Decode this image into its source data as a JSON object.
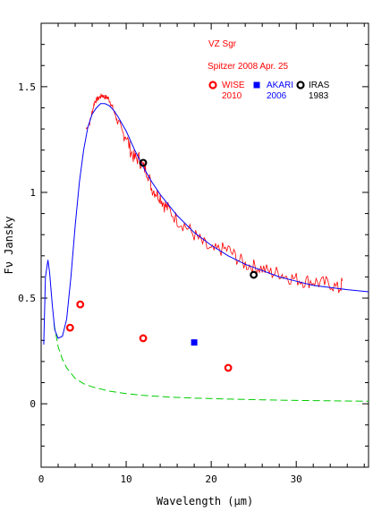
{
  "chart_data": {
    "type": "scatter",
    "title": "VZ Sgr",
    "subtitle": "Spitzer 2008 Apr. 25",
    "xlabel": "Wavelength (μm)",
    "ylabel": "Fν   Jansky",
    "xlim": [
      0,
      38.5
    ],
    "ylim": [
      -0.3,
      1.8
    ],
    "x_ticks": [
      0,
      10,
      20,
      30
    ],
    "y_ticks": [
      0,
      0.5,
      1,
      1.5
    ],
    "x_tick_labels": [
      "0",
      "10",
      "20",
      "30"
    ],
    "y_tick_labels": [
      "0",
      "0.5",
      "1",
      "1.5"
    ],
    "grid": false,
    "legend": [
      {
        "name": "WISE",
        "year": "2010",
        "marker": "open-circle",
        "color": "#ff0000",
        "year_color": "#ff0000"
      },
      {
        "name": "AKARI",
        "year": "2006",
        "marker": "filled-square",
        "color": "#0000ff",
        "year_color": "#0000ff"
      },
      {
        "name": "IRAS",
        "year": "1983",
        "marker": "open-circle",
        "color": "#000000",
        "year_color": "#000000"
      }
    ],
    "series": [
      {
        "name": "WISE",
        "color": "#ff0000",
        "marker": "open-circle",
        "x": [
          3.4,
          4.6,
          12,
          22
        ],
        "y": [
          0.36,
          0.47,
          0.31,
          0.17
        ]
      },
      {
        "name": "AKARI",
        "color": "#0000ff",
        "marker": "filled-square",
        "x": [
          18
        ],
        "y": [
          0.29
        ]
      },
      {
        "name": "IRAS",
        "color": "#000000",
        "marker": "open-circle",
        "x": [
          12,
          25
        ],
        "y": [
          1.14,
          0.61
        ]
      }
    ],
    "model_curve": {
      "color": "#0000ff",
      "x": [
        0.3,
        0.5,
        0.8,
        1.0,
        1.3,
        1.6,
        2.0,
        2.5,
        3.0,
        3.5,
        4.0,
        4.5,
        5.0,
        5.5,
        6.0,
        6.5,
        7.0,
        7.5,
        8.0,
        8.5,
        9.0,
        10,
        11,
        12,
        13,
        14,
        16,
        18,
        20,
        22,
        24,
        26,
        28,
        30,
        32,
        34,
        36,
        38.5
      ],
      "y": [
        0.28,
        0.6,
        0.68,
        0.62,
        0.47,
        0.35,
        0.31,
        0.32,
        0.4,
        0.6,
        0.84,
        1.05,
        1.2,
        1.31,
        1.37,
        1.4,
        1.42,
        1.42,
        1.41,
        1.39,
        1.36,
        1.29,
        1.2,
        1.12,
        1.05,
        0.99,
        0.89,
        0.81,
        0.75,
        0.7,
        0.66,
        0.63,
        0.6,
        0.58,
        0.56,
        0.55,
        0.54,
        0.53
      ]
    },
    "spectrum": {
      "color": "#ff0000",
      "x": [
        5.3,
        5.7,
        6.0,
        6.3,
        6.6,
        6.9,
        7.2,
        7.5,
        7.8,
        8.1,
        8.4,
        8.7,
        9.0,
        9.5,
        10,
        10.5,
        11,
        11.5,
        12,
        12.5,
        13,
        13.5,
        14,
        14.5,
        15,
        16,
        17,
        18,
        19,
        20,
        21,
        22,
        23,
        24,
        25,
        26,
        27,
        28,
        29,
        30,
        31,
        32,
        33,
        34,
        35,
        35.5
      ],
      "y": [
        1.3,
        1.33,
        1.38,
        1.43,
        1.44,
        1.45,
        1.46,
        1.45,
        1.45,
        1.43,
        1.4,
        1.37,
        1.33,
        1.28,
        1.27,
        1.2,
        1.16,
        1.16,
        1.12,
        1.1,
        1.02,
        1.0,
        0.98,
        0.94,
        0.92,
        0.87,
        0.84,
        0.8,
        0.76,
        0.72,
        0.73,
        0.73,
        0.69,
        0.66,
        0.65,
        0.64,
        0.62,
        0.62,
        0.6,
        0.59,
        0.58,
        0.58,
        0.57,
        0.57,
        0.54,
        0.58
      ]
    },
    "dust_curve": {
      "color": "#00cc00",
      "x": [
        1.5,
        2.0,
        2.5,
        3,
        4,
        5,
        6,
        8,
        10,
        12,
        15,
        18,
        22,
        26,
        30,
        34,
        38.5
      ],
      "y": [
        0.38,
        0.27,
        0.21,
        0.17,
        0.12,
        0.095,
        0.08,
        0.06,
        0.048,
        0.04,
        0.032,
        0.027,
        0.022,
        0.019,
        0.016,
        0.014,
        0.012
      ]
    }
  }
}
